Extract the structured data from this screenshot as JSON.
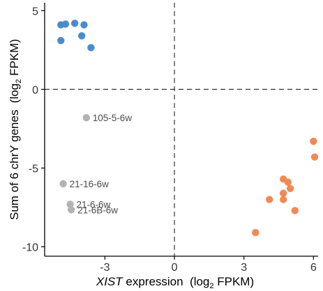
{
  "chart_data": {
    "type": "scatter",
    "title": "",
    "xlabel": {
      "italic": "XIST",
      "plain": " expression  (log",
      "sub": "2",
      "tail": " FPKM)"
    },
    "ylabel": {
      "plain": "Sum of 6 chrY genes  (log",
      "sub": "2",
      "tail": " FPKM)"
    },
    "xlim": [
      -5.6,
      6.2
    ],
    "ylim": [
      -10.6,
      5.5
    ],
    "x_ticks": [
      -3,
      0,
      3,
      6
    ],
    "x_tick_labels": [
      "-3",
      "0",
      "3",
      "6"
    ],
    "y_ticks": [
      5,
      0,
      -5,
      -10
    ],
    "y_tick_labels": [
      "5",
      "0",
      "-5",
      "-10"
    ],
    "reference_lines": {
      "x": 0,
      "y": 0,
      "style": "dashed"
    },
    "grid": false,
    "legend": "none",
    "series": [
      {
        "color": "#4a8ccb",
        "points": [
          {
            "x": -4.9,
            "y": 4.1
          },
          {
            "x": -4.7,
            "y": 4.15
          },
          {
            "x": -4.3,
            "y": 4.2
          },
          {
            "x": -3.9,
            "y": 4.1
          },
          {
            "x": -4.0,
            "y": 3.4
          },
          {
            "x": -4.9,
            "y": 3.1
          },
          {
            "x": -3.6,
            "y": 2.65
          }
        ]
      },
      {
        "color": "#f08a55",
        "points": [
          {
            "x": 6.0,
            "y": -3.3
          },
          {
            "x": 6.05,
            "y": -4.3
          },
          {
            "x": 4.7,
            "y": -5.7
          },
          {
            "x": 4.9,
            "y": -5.9
          },
          {
            "x": 5.0,
            "y": -6.3
          },
          {
            "x": 4.7,
            "y": -6.6
          },
          {
            "x": 4.7,
            "y": -7.0
          },
          {
            "x": 4.1,
            "y": -7.0
          },
          {
            "x": 5.2,
            "y": -7.7
          },
          {
            "x": 3.5,
            "y": -9.1
          }
        ]
      },
      {
        "color": "#b3b3b3",
        "points": [
          {
            "x": -3.8,
            "y": -1.8,
            "label": "105-5-6w"
          },
          {
            "x": -4.8,
            "y": -6.0,
            "label": "21-16-6w"
          },
          {
            "x": -4.5,
            "y": -7.3,
            "label": "21-6-6w"
          },
          {
            "x": -4.45,
            "y": -7.65,
            "label": "21-6B-6w"
          }
        ]
      }
    ]
  },
  "colors": {
    "axis": "#000000",
    "reference_line": "#333333",
    "label_text": "#4d4d4d"
  }
}
